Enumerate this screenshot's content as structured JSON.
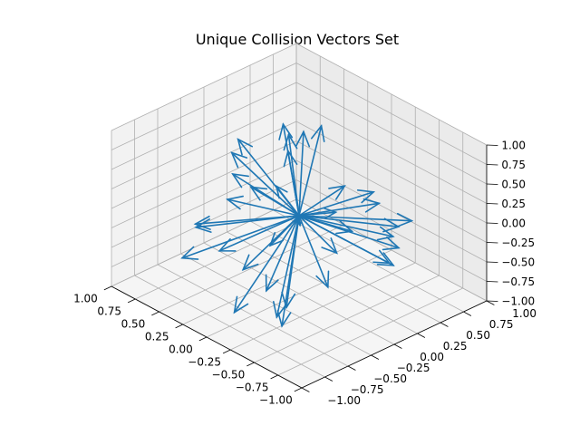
{
  "chart_data": {
    "type": "quiver3d",
    "title": "Unique Collision Vectors Set",
    "xlabel": "",
    "ylabel": "",
    "zlabel": "",
    "xlim": [
      -1.0,
      1.0
    ],
    "ylim": [
      -1.0,
      1.0
    ],
    "zlim": [
      -1.0,
      1.0
    ],
    "x_ticks": [
      "−1.00",
      "−0.75",
      "−0.50",
      "−0.25",
      "0.00",
      "0.25",
      "0.50",
      "0.75",
      "1.00"
    ],
    "y_ticks": [
      "−1.00",
      "−0.75",
      "−0.50",
      "−0.25",
      "0.00",
      "0.25",
      "0.50",
      "0.75",
      "1.00"
    ],
    "z_ticks": [
      "−1.00",
      "−0.75",
      "−0.50",
      "−0.25",
      "0.00",
      "0.25",
      "0.50",
      "0.75",
      "1.00"
    ],
    "grid": true,
    "color": "#1f77b4",
    "pane_color": "#f2f2f2",
    "origin": [
      0,
      0,
      0
    ],
    "vectors": [
      [
        0.35,
        -0.3,
        0.92
      ],
      [
        0.05,
        0.1,
        0.99
      ],
      [
        -0.15,
        -0.4,
        0.7
      ],
      [
        -0.55,
        0.3,
        0.35
      ],
      [
        -0.85,
        0.2,
        0.3
      ],
      [
        -0.6,
        0.4,
        -0.1
      ],
      [
        -0.95,
        0.1,
        0.15
      ],
      [
        -0.75,
        -0.2,
        0.4
      ],
      [
        -0.9,
        0.05,
        -0.05
      ],
      [
        -0.7,
        0.3,
        -0.35
      ],
      [
        -0.45,
        -0.6,
        -0.55
      ],
      [
        -0.5,
        -0.7,
        -0.7
      ],
      [
        -0.3,
        -0.55,
        -0.8
      ],
      [
        0.0,
        -0.7,
        -0.85
      ],
      [
        0.15,
        -0.2,
        -0.95
      ],
      [
        0.35,
        -0.5,
        -0.4
      ],
      [
        0.5,
        -0.75,
        -0.45
      ],
      [
        0.75,
        -0.35,
        -0.4
      ],
      [
        0.55,
        -0.55,
        -0.2
      ],
      [
        0.85,
        0.1,
        -0.4
      ],
      [
        0.7,
        0.2,
        -0.2
      ],
      [
        0.95,
        0.25,
        0.05
      ],
      [
        0.65,
        0.55,
        0.1
      ],
      [
        0.45,
        0.35,
        0.55
      ],
      [
        0.3,
        0.55,
        0.65
      ],
      [
        0.75,
        0.6,
        0.35
      ],
      [
        0.1,
        0.5,
        -0.3
      ],
      [
        -0.25,
        0.15,
        -0.4
      ],
      [
        -0.4,
        -0.1,
        -0.6
      ],
      [
        0.2,
        -0.4,
        -0.6
      ],
      [
        0.6,
        -0.1,
        0.2
      ],
      [
        -0.2,
        0.6,
        0.1
      ],
      [
        0.4,
        0.1,
        -0.7
      ],
      [
        -0.35,
        -0.35,
        0.3
      ],
      [
        0.25,
        0.75,
        -0.2
      ],
      [
        -0.65,
        0.55,
        0.05
      ]
    ]
  }
}
